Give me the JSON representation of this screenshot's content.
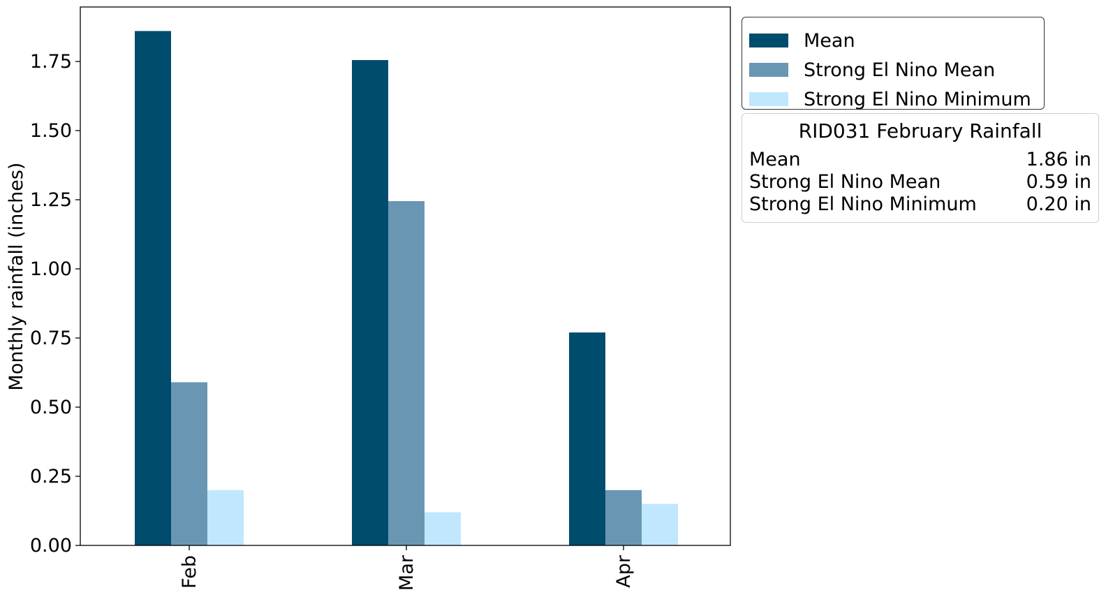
{
  "chart_data": {
    "type": "bar",
    "categories": [
      "Feb",
      "Mar",
      "Apr"
    ],
    "series": [
      {
        "name": "Mean",
        "color": "#004c6d",
        "values": [
          1.86,
          1.755,
          0.77
        ]
      },
      {
        "name": "Strong El Nino Mean",
        "color": "#6996b3",
        "values": [
          0.59,
          1.245,
          0.2
        ]
      },
      {
        "name": "Strong El Nino Minimum",
        "color": "#c1e7ff",
        "values": [
          0.2,
          0.12,
          0.15
        ]
      }
    ],
    "ylabel": "Monthly rainfall (inches)",
    "xlabel": "",
    "ylim": [
      0,
      1.95
    ],
    "yticks": [
      "0.00",
      "0.25",
      "0.50",
      "0.75",
      "1.00",
      "1.25",
      "1.50",
      "1.75"
    ],
    "legend_position": "outside top-right",
    "grid": false
  },
  "info_box": {
    "title": "RID031 February Rainfall",
    "rows": [
      {
        "label": "Mean",
        "value": "1.86 in"
      },
      {
        "label": "Strong El Nino Mean",
        "value": "0.59 in"
      },
      {
        "label": "Strong El Nino Minimum",
        "value": "0.20 in"
      }
    ]
  }
}
